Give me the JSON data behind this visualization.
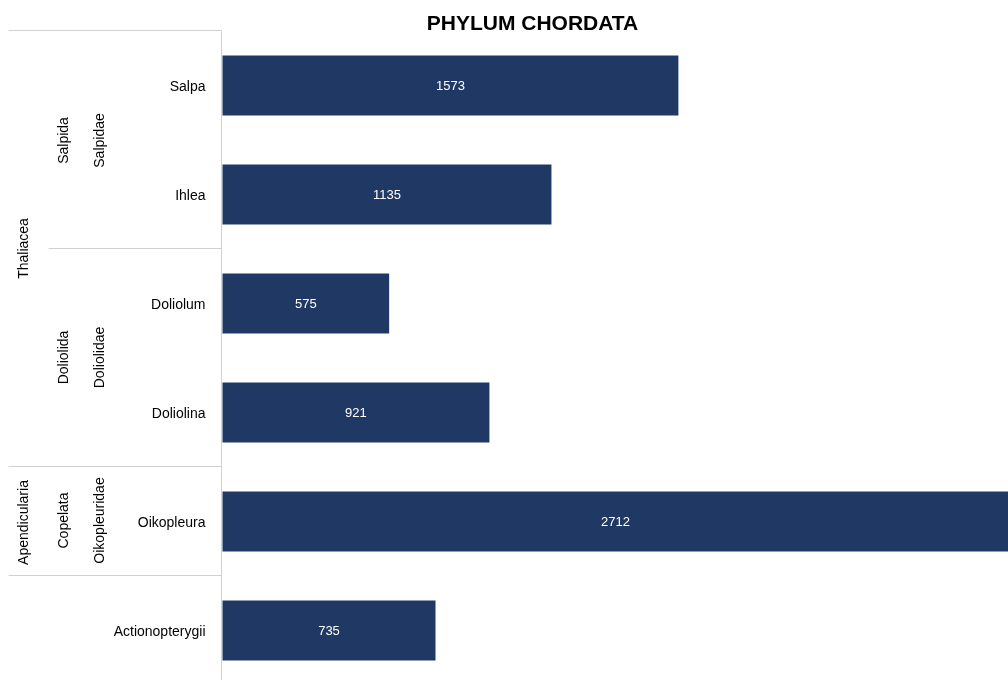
{
  "chart_data": {
    "type": "bar",
    "orientation": "horizontal",
    "title": "PHYLUM CHORDATA",
    "categories": [
      "Salpa",
      "Ihlea",
      "Doliolum",
      "Doliolina",
      "Oikopleura",
      "Actionopterygii"
    ],
    "values": [
      1573,
      1135,
      575,
      921,
      2712,
      735
    ],
    "color": "#203864",
    "data_labels": true,
    "annotations": [
      "Thaliacea",
      "Salpida",
      "Salpidae",
      "Doliolida",
      "Doliolidae",
      "Apendicularia",
      "Copelata",
      "Oikopleuridae"
    ]
  }
}
